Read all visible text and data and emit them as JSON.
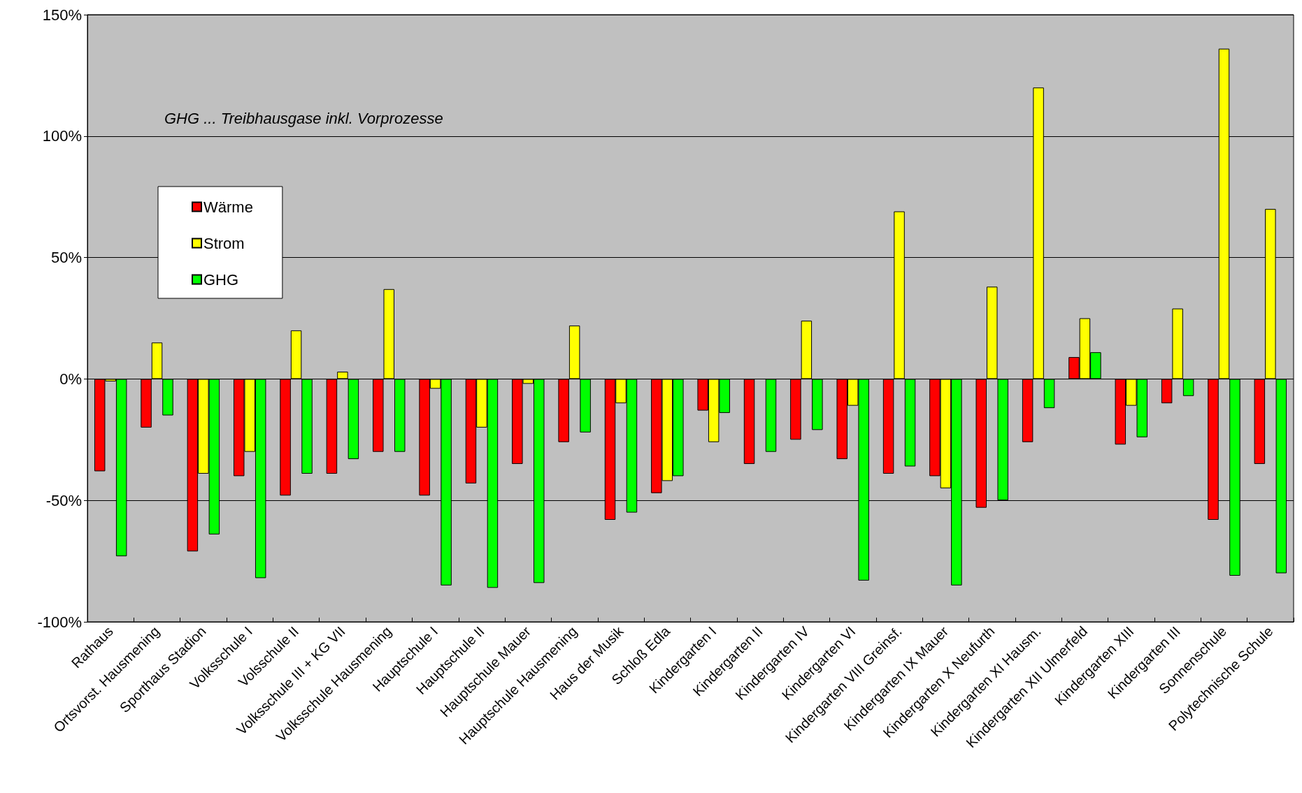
{
  "chart_data": {
    "type": "bar",
    "categories": [
      "Rathaus",
      "Ortsvorst. Hausmening",
      "Sporthaus Stadion",
      "Volksschule I",
      "Volsschule II",
      "Volksschule III + KG VII",
      "Volksschule Hausmening",
      "Hauptschule I",
      "Hauptschule II",
      "Hauptschule Mauer",
      "Hauptschule Hausmening",
      "Haus der Musik",
      "Schloß Edla",
      "Kindergarten I",
      "Kindergarten II",
      "Kindergarten IV",
      "Kindergarten VI",
      "Kindergarten VIII Greinsf.",
      "Kindergarten IX Mauer",
      "Kindergarten X Neufurth",
      "Kindergarten XI Hausm.",
      "Kindergarten XII Ulmerfeld",
      "Kindergarten XIII",
      "Kindergarten III",
      "Sonnenschule",
      "Polytechnische Schule"
    ],
    "series": [
      {
        "name": "Wärme",
        "color": "#ff0000",
        "values": [
          -38,
          -20,
          -71,
          -40,
          -48,
          -39,
          -30,
          -48,
          -43,
          -35,
          -26,
          -58,
          -47,
          -13,
          -35,
          -25,
          -33,
          -39,
          -40,
          -53,
          -26,
          9,
          -27,
          -10,
          -58,
          -35
        ]
      },
      {
        "name": "Strom",
        "color": "#ffff00",
        "values": [
          -1,
          15,
          -39,
          -30,
          20,
          3,
          37,
          -4,
          -20,
          -2,
          22,
          -10,
          -42,
          -26,
          null,
          24,
          -11,
          69,
          -45,
          38,
          120,
          25,
          -11,
          29,
          136,
          70
        ]
      },
      {
        "name": "GHG",
        "color": "#00ff00",
        "values": [
          -73,
          -15,
          -64,
          -82,
          -39,
          -33,
          -30,
          -85,
          -86,
          -84,
          -22,
          -55,
          -40,
          -14,
          -30,
          -21,
          -83,
          -36,
          -85,
          -50,
          -12,
          11,
          -24,
          -7,
          -81,
          -80
        ]
      }
    ],
    "ylim": [
      -100,
      150
    ],
    "yticks": [
      {
        "value": -100,
        "label": "-100%"
      },
      {
        "value": -50,
        "label": "-50%"
      },
      {
        "value": 0,
        "label": "0%"
      },
      {
        "value": 50,
        "label": "50%"
      },
      {
        "value": 100,
        "label": "100%"
      },
      {
        "value": 150,
        "label": "150%"
      }
    ],
    "grid": "y",
    "legend": "top left",
    "annotations": [
      "GHG ... Treibhausgase inkl. Vorprozesse"
    ]
  }
}
